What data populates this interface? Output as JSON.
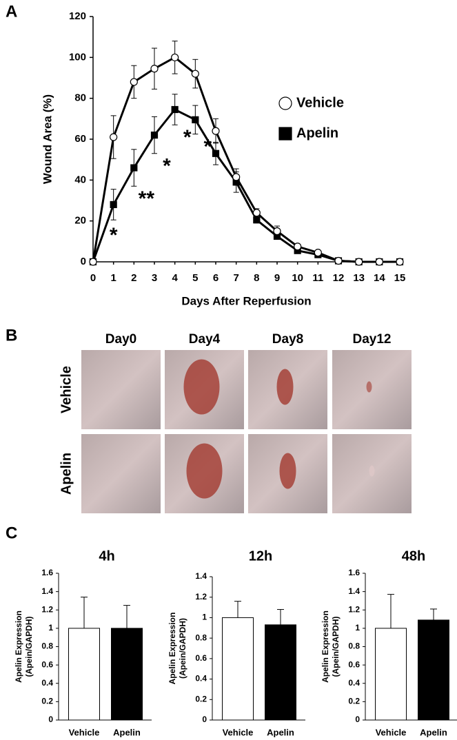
{
  "panel_labels": [
    "A",
    "B",
    "C"
  ],
  "photo_grid": {
    "columns": [
      "Day0",
      "Day4",
      "Day8",
      "Day12"
    ],
    "rows": [
      "Vehicle",
      "Apelin"
    ]
  },
  "chart_data": [
    {
      "type": "line",
      "xlabel": "Days After Reperfusion",
      "ylabel": "Wound Area (%)",
      "x": [
        0,
        1,
        2,
        3,
        4,
        5,
        6,
        7,
        8,
        9,
        10,
        11,
        12,
        13,
        14,
        15
      ],
      "xlim": [
        0,
        15
      ],
      "xticks": [
        0,
        1,
        2,
        3,
        4,
        5,
        6,
        7,
        8,
        9,
        10,
        11,
        12,
        13,
        14,
        15
      ],
      "ylim": [
        0,
        120
      ],
      "yticks": [
        0,
        20,
        40,
        60,
        80,
        100,
        120
      ],
      "legend": "right",
      "series": [
        {
          "name": "Vehicle",
          "color": "#ffffff",
          "marker": "circle",
          "values": [
            0,
            61,
            88,
            94.5,
            100,
            92,
            64,
            41.5,
            24,
            15,
            7.5,
            4.5,
            0.5,
            0,
            0,
            0
          ],
          "errors": [
            0,
            10.5,
            8,
            10,
            8,
            7,
            6,
            4,
            2,
            2.5,
            1,
            0.5,
            0.3,
            0,
            0,
            0
          ]
        },
        {
          "name": "Apelin",
          "color": "#000000",
          "marker": "square",
          "values": [
            0,
            28,
            46,
            62,
            74.5,
            69.5,
            53,
            39,
            20.5,
            12.5,
            5.5,
            3.5,
            0.5,
            0,
            0,
            0
          ],
          "errors": [
            0,
            7.5,
            9,
            9,
            7.5,
            7,
            5.5,
            5,
            1.5,
            1.5,
            1,
            1,
            0.3,
            0,
            0,
            0
          ]
        }
      ],
      "annotations": [
        {
          "text": "*",
          "x": 1
        },
        {
          "text": "**",
          "x": 2
        },
        {
          "text": "*",
          "x": 3
        },
        {
          "text": "*",
          "x": 4
        },
        {
          "text": "*",
          "x": 5
        }
      ]
    },
    {
      "type": "bar",
      "title": "4h",
      "ylabel": [
        "Apelin Expression",
        "(Apein/GAPDH)"
      ],
      "categories": [
        "Vehicle",
        "Apelin"
      ],
      "values": [
        1,
        1.0
      ],
      "errors": [
        0.34,
        0.25
      ],
      "colors": [
        "#ffffff",
        "#000000"
      ],
      "ylim": [
        0,
        1.6
      ],
      "yticks": [
        0,
        0.2,
        0.4,
        0.6,
        0.8,
        1,
        1.2,
        1.4,
        1.6
      ]
    },
    {
      "type": "bar",
      "title": "12h",
      "ylabel": [
        "Apelin Expression",
        "(Apein/GAPDH)"
      ],
      "categories": [
        "Vehicle",
        "Apelin"
      ],
      "values": [
        1,
        0.93
      ],
      "errors": [
        0.16,
        0.15
      ],
      "colors": [
        "#ffffff",
        "#000000"
      ],
      "ylim": [
        0,
        1.4
      ],
      "yticks": [
        0,
        0.2,
        0.4,
        0.6,
        0.8,
        1,
        1.2,
        1.4
      ]
    },
    {
      "type": "bar",
      "title": "48h",
      "ylabel": [
        "Apelin Expression",
        "(Apein/GAPDH)"
      ],
      "categories": [
        "Vehicle",
        "Apelin"
      ],
      "values": [
        1,
        1.09
      ],
      "errors": [
        0.37,
        0.12
      ],
      "colors": [
        "#ffffff",
        "#000000"
      ],
      "ylim": [
        0,
        1.6
      ],
      "yticks": [
        0,
        0.2,
        0.4,
        0.6,
        0.8,
        1,
        1.2,
        1.4,
        1.6
      ]
    }
  ]
}
